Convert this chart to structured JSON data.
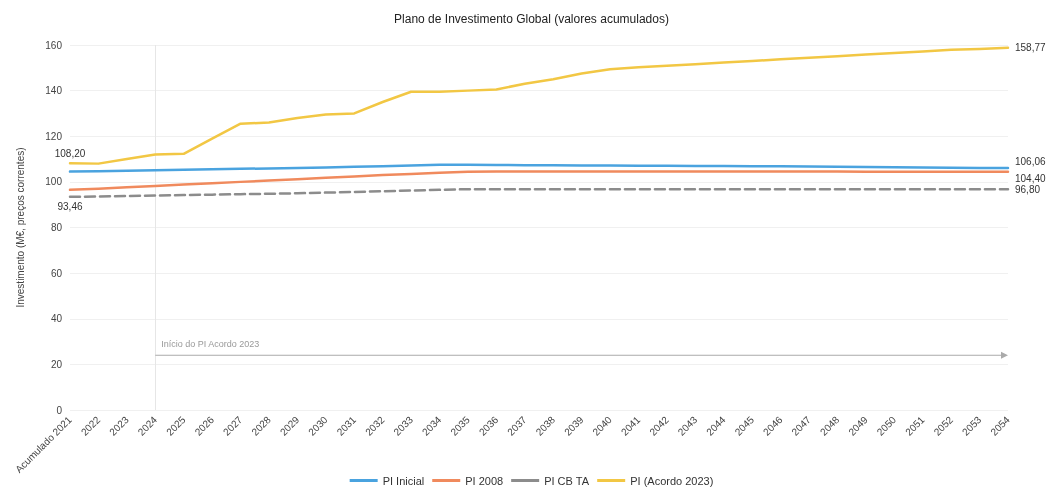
{
  "chart_data": {
    "type": "line",
    "title": "Plano de Investimento Global (valores acumulados)",
    "ylabel": "Investimento (M€, preços correntes)",
    "categories": [
      "Acumulado 2021",
      "2022",
      "2023",
      "2024",
      "2025",
      "2026",
      "2027",
      "2028",
      "2029",
      "2030",
      "2031",
      "2032",
      "2033",
      "2034",
      "2035",
      "2036",
      "2037",
      "2038",
      "2039",
      "2040",
      "2041",
      "2042",
      "2043",
      "2044",
      "2045",
      "2046",
      "2047",
      "2048",
      "2049",
      "2050",
      "2051",
      "2052",
      "2053",
      "2054"
    ],
    "series": [
      {
        "name": "PI Inicial",
        "color": "#4aa3df",
        "values": [
          104.5,
          104.7,
          104.9,
          105.1,
          105.3,
          105.5,
          105.7,
          105.9,
          106.1,
          106.3,
          106.6,
          106.9,
          107.2,
          107.5,
          107.5,
          107.4,
          107.3,
          107.3,
          107.2,
          107.2,
          107.1,
          107.1,
          107,
          107,
          106.9,
          106.8,
          106.7,
          106.6,
          106.5,
          106.4,
          106.3,
          106.2,
          106.1,
          106.06
        ],
        "value_labels": [
          null,
          null,
          null,
          null,
          null,
          null,
          null,
          null,
          null,
          null,
          null,
          null,
          null,
          null,
          null,
          null,
          null,
          null,
          null,
          null,
          null,
          null,
          null,
          null,
          null,
          null,
          null,
          null,
          null,
          null,
          null,
          null,
          null,
          "106,06"
        ]
      },
      {
        "name": "PI 2008",
        "color": "#f08a5d",
        "values": [
          96.5,
          97,
          97.6,
          98.2,
          98.8,
          99.4,
          100,
          100.6,
          101.2,
          101.8,
          102.4,
          103,
          103.5,
          104,
          104.4,
          104.5,
          104.5,
          104.5,
          104.5,
          104.5,
          104.5,
          104.5,
          104.5,
          104.5,
          104.5,
          104.5,
          104.5,
          104.5,
          104.4,
          104.4,
          104.4,
          104.4,
          104.4,
          104.4
        ],
        "value_labels": [
          null,
          null,
          null,
          null,
          null,
          null,
          null,
          null,
          null,
          null,
          null,
          null,
          null,
          null,
          null,
          null,
          null,
          null,
          null,
          null,
          null,
          null,
          null,
          null,
          null,
          null,
          null,
          null,
          null,
          null,
          null,
          null,
          null,
          "104,40"
        ]
      },
      {
        "name": "PI CB TA",
        "color": "#8c8c8c",
        "line_style": "dashed",
        "values": [
          93.46,
          93.6,
          93.8,
          94,
          94.2,
          94.4,
          94.6,
          94.8,
          95,
          95.3,
          95.6,
          95.9,
          96.2,
          96.5,
          96.8,
          96.8,
          96.8,
          96.8,
          96.8,
          96.8,
          96.8,
          96.8,
          96.8,
          96.8,
          96.8,
          96.8,
          96.8,
          96.8,
          96.8,
          96.8,
          96.8,
          96.8,
          96.8,
          96.8
        ],
        "value_labels": [
          "93,46",
          null,
          null,
          null,
          null,
          null,
          null,
          null,
          null,
          null,
          null,
          null,
          null,
          null,
          null,
          null,
          null,
          null,
          null,
          null,
          null,
          null,
          null,
          null,
          null,
          null,
          null,
          null,
          null,
          null,
          null,
          null,
          null,
          "96,80"
        ]
      },
      {
        "name": "PI (Acordo 2023)",
        "color": "#f2c744",
        "values": [
          108.2,
          108,
          110,
          112,
          112.3,
          119,
          125.5,
          126,
          128,
          129.5,
          130,
          135,
          139.5,
          139.5,
          140,
          140.5,
          143,
          145,
          147.5,
          149.4,
          150.2,
          150.9,
          151.6,
          152.3,
          153,
          153.7,
          154.4,
          155.1,
          155.8,
          156.5,
          157.2,
          157.9,
          158.3,
          158.77
        ],
        "value_labels": [
          "108,20",
          null,
          null,
          null,
          null,
          null,
          null,
          null,
          null,
          null,
          null,
          null,
          null,
          null,
          null,
          null,
          null,
          null,
          null,
          null,
          null,
          null,
          null,
          null,
          null,
          null,
          null,
          null,
          null,
          null,
          null,
          null,
          null,
          "158,77"
        ]
      }
    ],
    "ylim": [
      0,
      160
    ],
    "yticks": [
      0,
      20,
      40,
      60,
      80,
      100,
      120,
      140,
      160
    ],
    "grid": "y",
    "legend": "bottom",
    "marker": "none",
    "line_style": "solid",
    "ref_lines": [
      {
        "axis": "x",
        "value": "2024",
        "color": "#e6e6e6"
      }
    ],
    "annotations": [
      {
        "text": "Início do PI Acordo 2023",
        "x": "2024",
        "y": 24
      }
    ]
  }
}
